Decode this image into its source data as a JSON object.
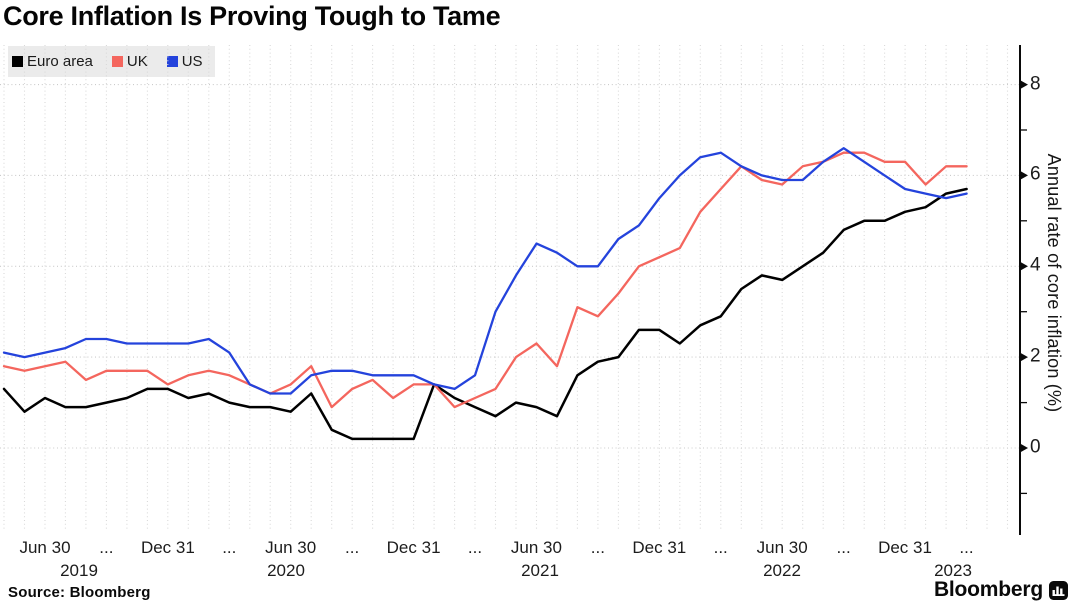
{
  "chart_data": {
    "type": "line",
    "title": "Core Inflation Is Proving Tough to Tame",
    "ylabel": "Annual rate of core inflation (%)",
    "ylim": [
      -1.9,
      8.9
    ],
    "y_major_ticks": [
      8,
      6,
      4,
      2,
      0
    ],
    "y_minor_ticks": [
      7,
      5,
      3,
      1,
      -1
    ],
    "grid": {
      "horizontal": "dotted at major y ticks",
      "vertical": "dotted monthly"
    },
    "legend_position": "top-left",
    "frequency": "monthly",
    "x_start": "2019-04",
    "x_end": "2023-03",
    "x_quarter_tick_labels": [
      "Jun 30",
      "...",
      "Dec 31",
      "...",
      "Jun 30",
      "...",
      "Dec 31",
      "...",
      "Jun 30",
      "...",
      "Dec 31",
      "...",
      "Jun 30",
      "...",
      "Dec 31",
      "..."
    ],
    "x_year_labels": [
      "2019",
      "2020",
      "2021",
      "2022",
      "2023"
    ],
    "series": [
      {
        "name": "Euro area",
        "color": "#000000",
        "values": [
          1.3,
          0.8,
          1.1,
          0.9,
          0.9,
          1.0,
          1.1,
          1.3,
          1.3,
          1.1,
          1.2,
          1.0,
          0.9,
          0.9,
          0.8,
          1.2,
          0.4,
          0.2,
          0.2,
          0.2,
          0.2,
          1.4,
          1.1,
          0.9,
          0.7,
          1.0,
          0.9,
          0.7,
          1.6,
          1.9,
          2.0,
          2.6,
          2.6,
          2.3,
          2.7,
          2.9,
          3.5,
          3.8,
          3.7,
          4.0,
          4.3,
          4.8,
          5.0,
          5.0,
          5.2,
          5.3,
          5.6,
          5.7
        ]
      },
      {
        "name": "UK",
        "color": "#f4665e",
        "values": [
          1.8,
          1.7,
          1.8,
          1.9,
          1.5,
          1.7,
          1.7,
          1.7,
          1.4,
          1.6,
          1.7,
          1.6,
          1.4,
          1.2,
          1.4,
          1.8,
          0.9,
          1.3,
          1.5,
          1.1,
          1.4,
          1.4,
          0.9,
          1.1,
          1.3,
          2.0,
          2.3,
          1.8,
          3.1,
          2.9,
          3.4,
          4.0,
          4.2,
          4.4,
          5.2,
          5.7,
          6.2,
          5.9,
          5.8,
          6.2,
          6.3,
          6.5,
          6.5,
          6.3,
          6.3,
          5.8,
          6.2,
          6.2
        ]
      },
      {
        "name": "US",
        "color": "#2443dc",
        "values": [
          2.1,
          2.0,
          2.1,
          2.2,
          2.4,
          2.4,
          2.3,
          2.3,
          2.3,
          2.3,
          2.4,
          2.1,
          1.4,
          1.2,
          1.2,
          1.6,
          1.7,
          1.7,
          1.6,
          1.6,
          1.6,
          1.4,
          1.3,
          1.6,
          3.0,
          3.8,
          4.5,
          4.3,
          4.0,
          4.0,
          4.6,
          4.9,
          5.5,
          6.0,
          6.4,
          6.5,
          6.2,
          6.0,
          5.9,
          5.9,
          6.3,
          6.6,
          6.3,
          6.0,
          5.7,
          5.6,
          5.5,
          5.6
        ]
      }
    ]
  },
  "source": {
    "text": "Source: Bloomberg"
  },
  "brand": {
    "name": "Bloomberg"
  }
}
